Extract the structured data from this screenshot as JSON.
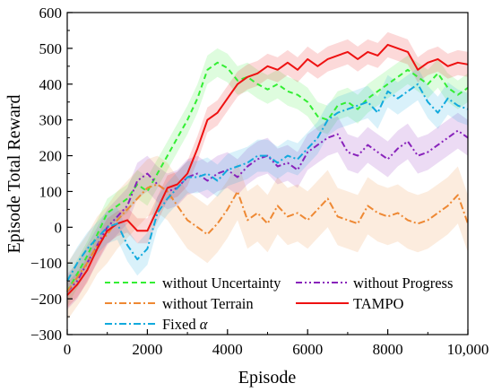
{
  "chart_data": {
    "type": "line",
    "xlabel": "Episode",
    "ylabel": "Episode Total Reward",
    "xlim": [
      0,
      10000
    ],
    "ylim": [
      -300,
      600
    ],
    "xticks": [
      0,
      2000,
      4000,
      6000,
      8000,
      10000
    ],
    "xtick_labels": [
      "0",
      "2000",
      "4000",
      "6000",
      "8000",
      "10,000"
    ],
    "yticks": [
      -300,
      -200,
      -100,
      0,
      100,
      200,
      300,
      400,
      500,
      600
    ],
    "ytick_labels": [
      "−300",
      "−200",
      "−100",
      "0",
      "100",
      "200",
      "300",
      "400",
      "500",
      "600"
    ],
    "grid": false,
    "legend_position": "bottom-left",
    "series": [
      {
        "name": "without Uncertainty",
        "color": "#33ee33",
        "dash": "dashed",
        "x": [
          0,
          250,
          500,
          750,
          1000,
          1250,
          1500,
          1750,
          2000,
          2250,
          2500,
          2750,
          3000,
          3250,
          3500,
          3750,
          4000,
          4250,
          4500,
          4750,
          5000,
          5250,
          5500,
          5750,
          6000,
          6250,
          6500,
          6750,
          7000,
          7250,
          7500,
          7750,
          8000,
          8250,
          8500,
          8750,
          9000,
          9250,
          9500,
          9750,
          10000
        ],
        "values": [
          -180,
          -130,
          -80,
          -20,
          40,
          60,
          80,
          120,
          100,
          150,
          200,
          250,
          300,
          360,
          440,
          460,
          445,
          410,
          420,
          400,
          385,
          400,
          380,
          370,
          350,
          310,
          300,
          340,
          350,
          330,
          360,
          380,
          400,
          420,
          440,
          420,
          400,
          430,
          390,
          370,
          390
        ],
        "band": 40
      },
      {
        "name": "without Progress",
        "color": "#8822bb",
        "dash": "dashdotdot",
        "x": [
          0,
          250,
          500,
          750,
          1000,
          1250,
          1500,
          1750,
          2000,
          2250,
          2500,
          2750,
          3000,
          3250,
          3500,
          3750,
          4000,
          4250,
          4500,
          4750,
          5000,
          5250,
          5500,
          5750,
          6000,
          6250,
          6500,
          6750,
          7000,
          7250,
          7500,
          7750,
          8000,
          8250,
          8500,
          8750,
          9000,
          9250,
          9500,
          9750,
          10000
        ],
        "values": [
          -180,
          -150,
          -100,
          -50,
          0,
          30,
          60,
          130,
          150,
          120,
          100,
          110,
          140,
          150,
          130,
          150,
          160,
          140,
          170,
          190,
          200,
          170,
          180,
          160,
          210,
          230,
          250,
          260,
          210,
          200,
          230,
          210,
          190,
          220,
          240,
          200,
          210,
          230,
          250,
          270,
          250
        ],
        "band": 50
      },
      {
        "name": "without Terrain",
        "color": "#ee8833",
        "dash": "dashdot",
        "x": [
          0,
          250,
          500,
          750,
          1000,
          1250,
          1500,
          1750,
          2000,
          2250,
          2500,
          2750,
          3000,
          3250,
          3500,
          3750,
          4000,
          4250,
          4500,
          4750,
          5000,
          5250,
          5500,
          5750,
          6000,
          6250,
          6500,
          6750,
          7000,
          7250,
          7500,
          7750,
          8000,
          8250,
          8500,
          8750,
          9000,
          9250,
          9500,
          9750,
          10000
        ],
        "values": [
          -180,
          -140,
          -100,
          -50,
          -20,
          20,
          50,
          80,
          110,
          120,
          100,
          60,
          20,
          0,
          -20,
          10,
          50,
          100,
          20,
          40,
          10,
          60,
          30,
          40,
          20,
          50,
          80,
          30,
          20,
          10,
          60,
          40,
          30,
          40,
          20,
          10,
          20,
          40,
          60,
          90,
          10
        ],
        "band": 80
      },
      {
        "name": "TAMPO",
        "color": "#ee1111",
        "dash": "solid",
        "x": [
          0,
          250,
          500,
          750,
          1000,
          1250,
          1500,
          1750,
          2000,
          2250,
          2500,
          2750,
          3000,
          3250,
          3500,
          3750,
          4000,
          4250,
          4500,
          4750,
          5000,
          5250,
          5500,
          5750,
          6000,
          6250,
          6500,
          6750,
          7000,
          7250,
          7500,
          7750,
          8000,
          8250,
          8500,
          8750,
          9000,
          9250,
          9500,
          9750,
          10000
        ],
        "values": [
          -190,
          -160,
          -120,
          -60,
          -10,
          10,
          20,
          -10,
          -10,
          50,
          110,
          120,
          150,
          220,
          300,
          320,
          360,
          400,
          420,
          430,
          450,
          440,
          460,
          440,
          470,
          450,
          470,
          480,
          490,
          470,
          490,
          480,
          510,
          500,
          490,
          440,
          460,
          470,
          450,
          460,
          455
        ],
        "band": 35
      },
      {
        "name": "Fixed α",
        "color": "#11aadd",
        "dash": "dashdot",
        "x": [
          0,
          250,
          500,
          750,
          1000,
          1250,
          1500,
          1750,
          2000,
          2250,
          2500,
          2750,
          3000,
          3250,
          3500,
          3750,
          4000,
          4250,
          4500,
          4750,
          5000,
          5250,
          5500,
          5750,
          6000,
          6250,
          6500,
          6750,
          7000,
          7250,
          7500,
          7750,
          8000,
          8250,
          8500,
          8750,
          9000,
          9250,
          9500,
          9750,
          10000
        ],
        "values": [
          -150,
          -100,
          -60,
          -30,
          0,
          10,
          -50,
          -90,
          -60,
          40,
          80,
          110,
          140,
          140,
          150,
          130,
          160,
          170,
          180,
          200,
          200,
          180,
          200,
          190,
          220,
          250,
          300,
          320,
          330,
          340,
          350,
          320,
          380,
          360,
          380,
          400,
          350,
          320,
          360,
          340,
          330
        ],
        "band": 45
      }
    ],
    "legend_labels": {
      "without_uncertainty": "without Uncertainty",
      "without_progress": "without Progress",
      "without_terrain": "without Terrain",
      "tampo": "TAMPO",
      "fixed_prefix": "Fixed ",
      "fixed_symbol": "α"
    }
  }
}
